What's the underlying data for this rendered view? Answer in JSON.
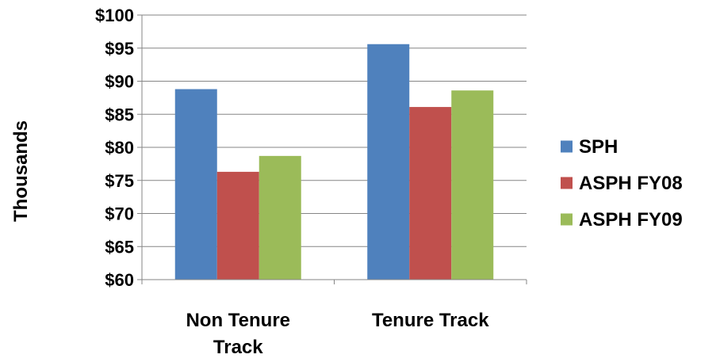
{
  "chart_data": {
    "type": "bar",
    "title": "",
    "xlabel": "",
    "ylabel": "Thousands",
    "categories": [
      "Non Tenure Track",
      "Tenure Track"
    ],
    "category_label_lines": [
      [
        "Non Tenure",
        "Track"
      ],
      [
        "Tenure Track"
      ]
    ],
    "series": [
      {
        "name": "SPH",
        "values": [
          88.8,
          95.6
        ],
        "color": "#4F81BD"
      },
      {
        "name": "ASPH FY08",
        "values": [
          76.3,
          86.1
        ],
        "color": "#C0504D"
      },
      {
        "name": "ASPH FY09",
        "values": [
          78.7,
          88.6
        ],
        "color": "#9BBB59"
      }
    ],
    "ylim": [
      60,
      100
    ],
    "yticks": [
      60,
      65,
      70,
      75,
      80,
      85,
      90,
      95,
      100
    ],
    "ytick_labels": [
      "$60",
      "$65",
      "$70",
      "$75",
      "$80",
      "$85",
      "$90",
      "$95",
      "$100"
    ],
    "grid": true,
    "legend": "right"
  }
}
